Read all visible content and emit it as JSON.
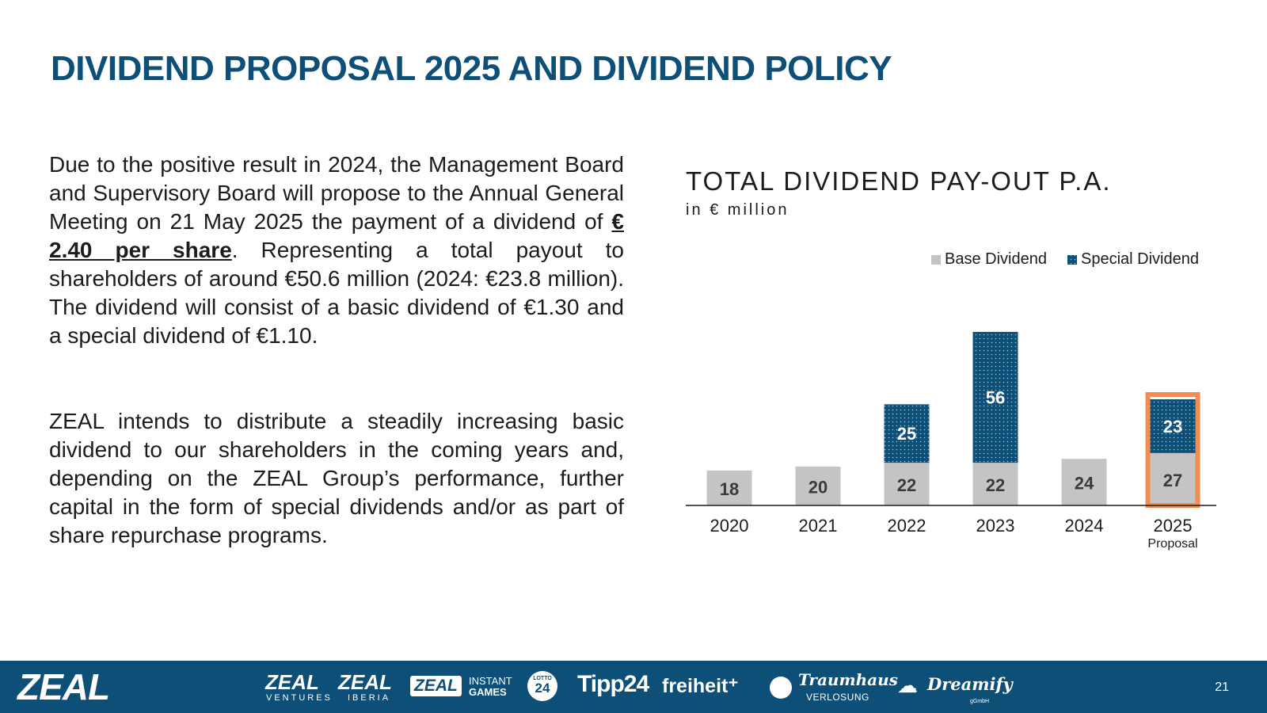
{
  "title": "DIVIDEND PROPOSAL 2025 AND DIVIDEND POLICY",
  "paragraph1": {
    "before": "Due to the positive result in 2024, the Management Board and Supervisory Board will propose to the Annual General Meeting on 21 May 2025 the payment of a dividend of ",
    "highlight": "€ 2.40 per share",
    "after": ". Representing a total payout to shareholders of around €50.6 million (2024: €23.8 million). The dividend will consist of a basic dividend of €1.30 and a special dividend of €1.10."
  },
  "paragraph2": "ZEAL intends to distribute a steadily increasing basic dividend to our shareholders in the coming years and, depending on the ZEAL Group’s performance, further capital in the form of special dividends and/or as part of share repurchase programs.",
  "chart_data": {
    "type": "bar",
    "stacked": true,
    "title": "TOTAL DIVIDEND PAY-OUT P.A.",
    "subtitle": "in € million",
    "categories": [
      "2020",
      "2021",
      "2022",
      "2023",
      "2024",
      "2025"
    ],
    "category_sublabels": [
      "",
      "",
      "",
      "",
      "",
      "Proposal"
    ],
    "series": [
      {
        "name": "Base Dividend",
        "values": [
          18,
          20,
          22,
          22,
          24,
          27
        ],
        "color": "#c4c4c4"
      },
      {
        "name": "Special Dividend",
        "values": [
          null,
          null,
          25,
          56,
          null,
          23
        ],
        "color": "#0e4f78"
      }
    ],
    "highlighted_category": "2025",
    "highlight_color": "#f28c50",
    "legend_position": "top-right",
    "grid": false
  },
  "footer": {
    "logo": "ZEAL",
    "brands": {
      "ventures": {
        "main": "ZEAL",
        "sub": "VENTURES"
      },
      "iberia": {
        "main": "ZEAL",
        "sub": "IBERIA"
      },
      "instant": {
        "box": "ZEAL",
        "line1": "INSTANT",
        "line2": "GAMES"
      },
      "lotto": {
        "top": "LOTTO",
        "num": "24"
      },
      "tipp24": "Tipp24",
      "freiheit": "freiheit⁺",
      "traumhaus": {
        "main": "Traumhaus",
        "sub": "VERLOSUNG"
      },
      "dreamify": {
        "main": "Dreamify",
        "sub": "gGmbH"
      }
    },
    "page_number": "21"
  },
  "colors": {
    "brand": "#0e4f78",
    "base": "#c4c4c4",
    "highlight": "#f28c50"
  }
}
